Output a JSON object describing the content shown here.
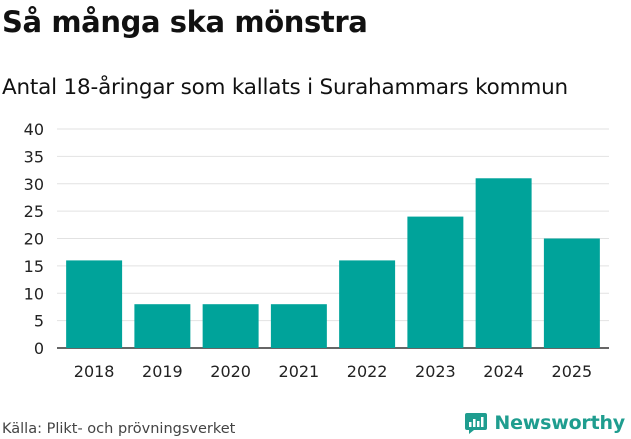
{
  "title": "Så många ska mönstra",
  "subtitle": "Antal 18-åringar som kallats i Surahammars kommun",
  "source": "Källa: Plikt- och prövningsverket",
  "brand": {
    "name": "Newsworthy",
    "color": "#1f9d8f",
    "icon": "newsworthy-logo-icon"
  },
  "chart_data": {
    "type": "bar",
    "categories": [
      "2018",
      "2019",
      "2020",
      "2021",
      "2022",
      "2023",
      "2024",
      "2025"
    ],
    "values": [
      16,
      8,
      8,
      8,
      16,
      24,
      31,
      20
    ],
    "title": "Så många ska mönstra",
    "subtitle": "Antal 18-åringar som kallats i Surahammars kommun",
    "ylim": [
      0,
      40
    ],
    "yticks": [
      0,
      5,
      10,
      15,
      20,
      25,
      30,
      35,
      40
    ],
    "grid": true,
    "legend": "none",
    "bar_color": "#00a39a"
  }
}
